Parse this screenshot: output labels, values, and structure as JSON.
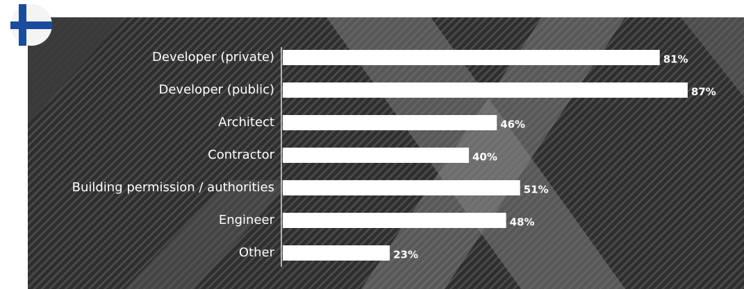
{
  "chart_data": {
    "type": "bar",
    "orientation": "horizontal",
    "categories": [
      "Developer (private)",
      "Developer (public)",
      "Architect",
      "Contractor",
      "Building permission / authorities",
      "Engineer",
      "Other"
    ],
    "values": [
      81,
      87,
      46,
      40,
      51,
      48,
      23
    ],
    "value_labels": [
      "81%",
      "87%",
      "46%",
      "40%",
      "51%",
      "48%",
      "23%"
    ],
    "color": "#ffffff"
  }
}
